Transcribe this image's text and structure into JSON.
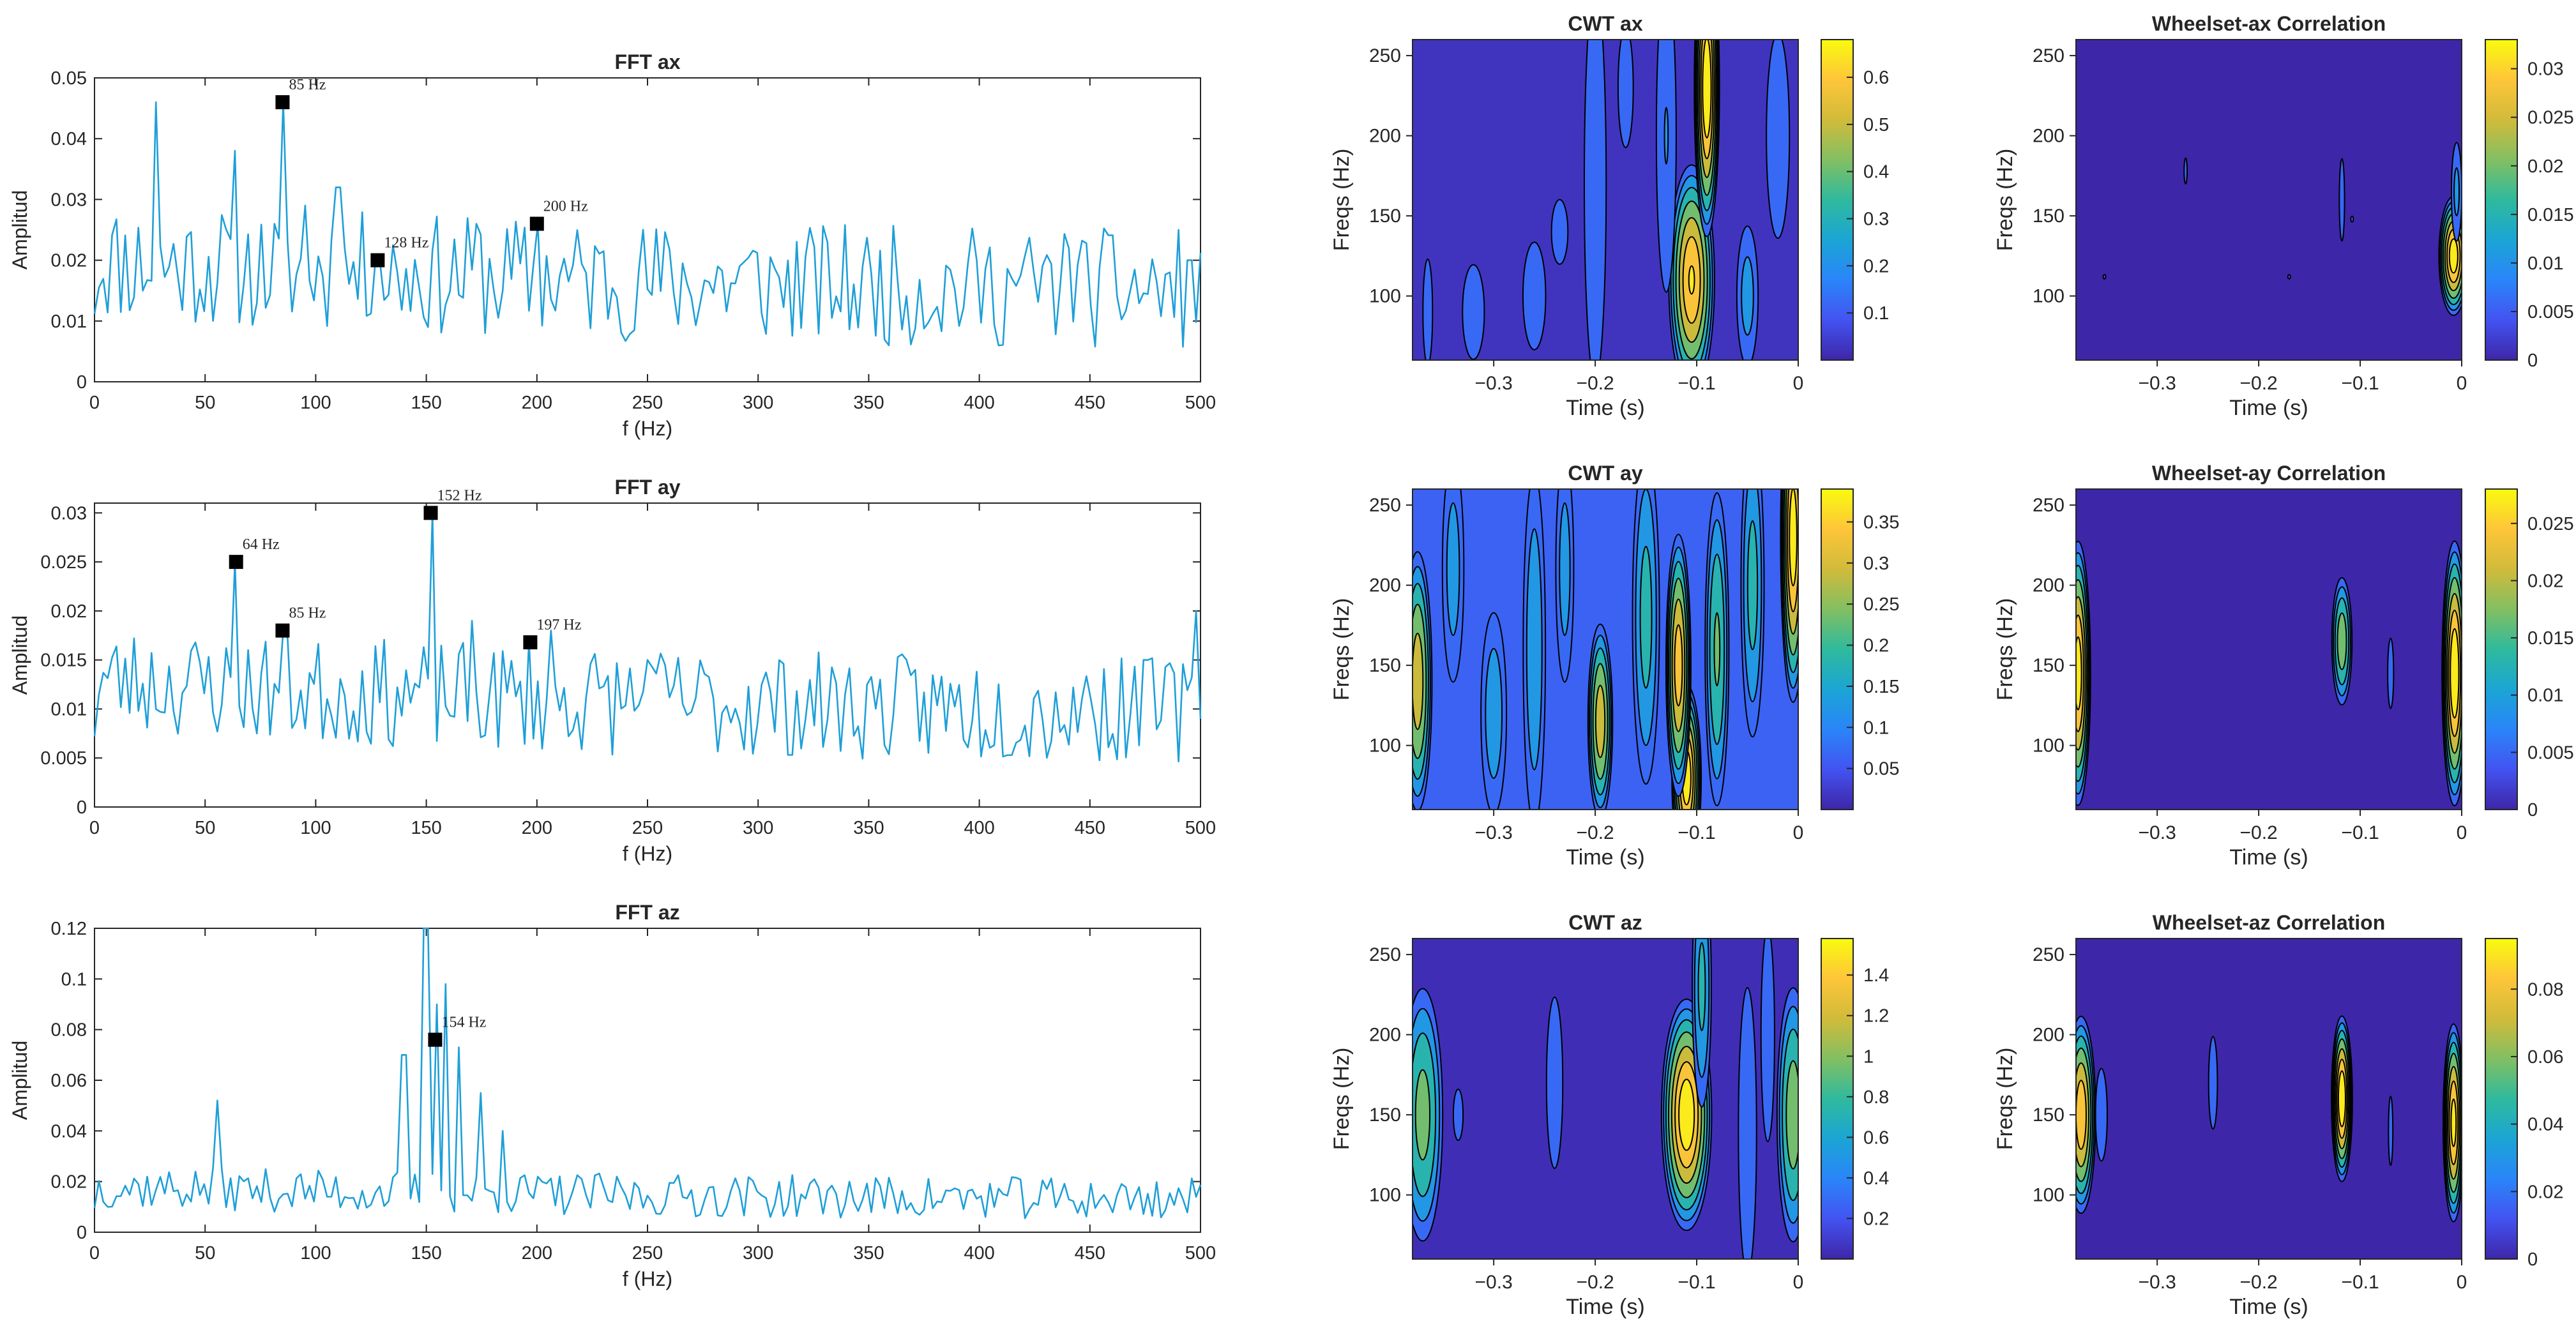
{
  "palette": {
    "line": "#1f9fd8",
    "marker": "#000000",
    "axis": "#262626",
    "background": "#ffffff",
    "parula": [
      "#3e26a8",
      "#4353f1",
      "#2a85f9",
      "#1ba5d4",
      "#2fba9d",
      "#83bf62",
      "#d1bb3a",
      "#fec539",
      "#f9fb0e"
    ]
  },
  "chart_data": [
    {
      "id": "fft-ax",
      "type": "line",
      "title": "FFT ax",
      "xlabel": "f (Hz)",
      "ylabel": "Amplitud",
      "xlim": [
        0,
        500
      ],
      "ylim": [
        0,
        0.05
      ],
      "xticks": [
        0,
        50,
        100,
        150,
        200,
        250,
        300,
        350,
        400,
        450,
        500
      ],
      "yticks": [
        0,
        0.01,
        0.02,
        0.03,
        0.04,
        0.05
      ],
      "yticklabels": [
        "0",
        "0.01",
        "0.02",
        "0.03",
        "0.04",
        "0.05"
      ],
      "seed": 11,
      "base": 0.014,
      "decay": 0.006,
      "noise": 0.02,
      "floor": 0.0,
      "bumps": [
        [
          28,
          0.046
        ],
        [
          63,
          0.038
        ],
        [
          85,
          0.046
        ],
        [
          95,
          0.029
        ],
        [
          110,
          0.032
        ],
        [
          128,
          0.02
        ],
        [
          200,
          0.026
        ],
        [
          172,
          0.026
        ],
        [
          440,
          0.022
        ],
        [
          495,
          0.02
        ]
      ],
      "peaks": [
        {
          "f": 85,
          "a": 0.046,
          "label": "85 Hz"
        },
        {
          "f": 128,
          "a": 0.02,
          "label": "128 Hz"
        },
        {
          "f": 200,
          "a": 0.026,
          "label": "200 Hz"
        }
      ]
    },
    {
      "id": "fft-ay",
      "type": "line",
      "title": "FFT ay",
      "xlabel": "f (Hz)",
      "ylabel": "Amplitud",
      "xlim": [
        0,
        500
      ],
      "ylim": [
        0,
        0.031
      ],
      "xticks": [
        0,
        50,
        100,
        150,
        200,
        250,
        300,
        350,
        400,
        450,
        500
      ],
      "yticks": [
        0,
        0.005,
        0.01,
        0.015,
        0.02,
        0.025,
        0.03
      ],
      "yticklabels": [
        "0",
        "0.005",
        "0.01",
        "0.015",
        "0.02",
        "0.025",
        "0.03"
      ],
      "seed": 23,
      "base": 0.009,
      "decay": 0.004,
      "noise": 0.011,
      "floor": 0.0,
      "bumps": [
        [
          64,
          0.025
        ],
        [
          86,
          0.018
        ],
        [
          152,
          0.03
        ],
        [
          170,
          0.019
        ],
        [
          197,
          0.017
        ],
        [
          207,
          0.018
        ],
        [
          250,
          0.015
        ],
        [
          355,
          0.013
        ],
        [
          450,
          0.011
        ],
        [
          475,
          0.015
        ],
        [
          498,
          0.02
        ]
      ],
      "peaks": [
        {
          "f": 64,
          "a": 0.025,
          "label": "64 Hz"
        },
        {
          "f": 85,
          "a": 0.018,
          "label": "85 Hz"
        },
        {
          "f": 152,
          "a": 0.03,
          "label": "152 Hz"
        },
        {
          "f": 197,
          "a": 0.0168,
          "label": "197 Hz"
        }
      ]
    },
    {
      "id": "fft-az",
      "type": "line",
      "title": "FFT az",
      "xlabel": "f (Hz)",
      "ylabel": "Amplitud",
      "xlim": [
        0,
        500
      ],
      "ylim": [
        0,
        0.12
      ],
      "xticks": [
        0,
        50,
        100,
        150,
        200,
        250,
        300,
        350,
        400,
        450,
        500
      ],
      "yticks": [
        0,
        0.02,
        0.04,
        0.06,
        0.08,
        0.1,
        0.12
      ],
      "yticklabels": [
        "0",
        "0.02",
        "0.04",
        "0.06",
        "0.08",
        "0.1",
        "0.12"
      ],
      "seed": 37,
      "base": 0.012,
      "decay": 0.006,
      "noise": 0.017,
      "floor": 0.0,
      "bumps": [
        [
          55,
          0.052
        ],
        [
          140,
          0.07
        ],
        [
          150,
          0.12
        ],
        [
          154,
          0.09
        ],
        [
          158,
          0.098
        ],
        [
          165,
          0.073
        ],
        [
          175,
          0.055
        ],
        [
          185,
          0.04
        ]
      ],
      "peaks": [
        {
          "f": 154,
          "a": 0.076,
          "label": "154 Hz"
        }
      ]
    },
    {
      "id": "cwt-ax",
      "type": "heatmap",
      "title": "CWT ax",
      "xlabel": "Time (s)",
      "ylabel": "Freqs (Hz)",
      "xlim": [
        -0.38,
        0
      ],
      "ylim": [
        60,
        260
      ],
      "xticks": [
        -0.3,
        -0.2,
        -0.1,
        0
      ],
      "xticklabels": [
        "−0.3",
        "−0.2",
        "−0.1",
        "0"
      ],
      "yticks": [
        100,
        150,
        200,
        250
      ],
      "clim": [
        0,
        0.68
      ],
      "cbticks": [
        0.1,
        0.2,
        0.3,
        0.4,
        0.5,
        0.6
      ],
      "cbticklabels": [
        "0.1",
        "0.2",
        "0.3",
        "0.4",
        "0.5",
        "0.6"
      ],
      "bg": 0.03,
      "blobs": [
        [
          -0.105,
          110,
          0.011,
          35,
          0.62
        ],
        [
          -0.09,
          230,
          0.006,
          45,
          0.68
        ],
        [
          -0.13,
          200,
          0.006,
          60,
          0.18
        ],
        [
          -0.2,
          170,
          0.007,
          80,
          0.16
        ],
        [
          -0.32,
          90,
          0.008,
          22,
          0.13
        ],
        [
          -0.26,
          100,
          0.01,
          30,
          0.11
        ],
        [
          -0.05,
          100,
          0.006,
          25,
          0.22
        ],
        [
          -0.02,
          200,
          0.008,
          45,
          0.14
        ],
        [
          -0.365,
          90,
          0.005,
          35,
          0.1
        ],
        [
          -0.17,
          230,
          0.006,
          30,
          0.12
        ],
        [
          -0.235,
          140,
          0.012,
          30,
          0.09
        ]
      ]
    },
    {
      "id": "corr-ax",
      "type": "heatmap",
      "title": "Wheelset-ax Correlation",
      "xlabel": "Time (s)",
      "ylabel": "Freqs (Hz)",
      "xlim": [
        -0.38,
        0
      ],
      "ylim": [
        60,
        260
      ],
      "xticks": [
        -0.3,
        -0.2,
        -0.1,
        0
      ],
      "xticklabels": [
        "−0.3",
        "−0.2",
        "−0.1",
        "0"
      ],
      "yticks": [
        100,
        150,
        200,
        250
      ],
      "clim": [
        0,
        0.033
      ],
      "cbticks": [
        0,
        0.005,
        0.01,
        0.015,
        0.02,
        0.025,
        0.03
      ],
      "cbticklabels": [
        "0",
        "0.005",
        "0.01",
        "0.015",
        "0.02",
        "0.025",
        "0.03"
      ],
      "bg": 0.0,
      "blobs": [
        [
          -0.008,
          125,
          0.007,
          18,
          0.032
        ],
        [
          -0.005,
          165,
          0.003,
          18,
          0.01
        ],
        [
          -0.118,
          160,
          0.002,
          20,
          0.006
        ],
        [
          -0.272,
          178,
          0.0015,
          8,
          0.005
        ],
        [
          -0.352,
          112,
          0.0015,
          6,
          0.004
        ],
        [
          -0.17,
          112,
          0.0015,
          6,
          0.004
        ],
        [
          -0.108,
          148,
          0.0015,
          8,
          0.004
        ]
      ]
    },
    {
      "id": "cwt-ay",
      "type": "heatmap",
      "title": "CWT ay",
      "xlabel": "Time (s)",
      "ylabel": "Freqs (Hz)",
      "xlim": [
        -0.38,
        0
      ],
      "ylim": [
        60,
        260
      ],
      "xticks": [
        -0.3,
        -0.2,
        -0.1,
        0
      ],
      "xticklabels": [
        "−0.3",
        "−0.2",
        "−0.1",
        "0"
      ],
      "yticks": [
        100,
        150,
        200,
        250
      ],
      "clim": [
        0,
        0.39
      ],
      "cbticks": [
        0.05,
        0.1,
        0.15,
        0.2,
        0.25,
        0.3,
        0.35
      ],
      "cbticklabels": [
        "0.05",
        "0.1",
        "0.15",
        "0.2",
        "0.25",
        "0.3",
        "0.35"
      ],
      "bg": 0.07,
      "blobs": [
        [
          -0.11,
          80,
          0.007,
          28,
          0.38
        ],
        [
          -0.118,
          150,
          0.006,
          40,
          0.34
        ],
        [
          -0.195,
          115,
          0.006,
          30,
          0.3
        ],
        [
          -0.005,
          230,
          0.006,
          50,
          0.38
        ],
        [
          -0.375,
          140,
          0.007,
          40,
          0.3
        ],
        [
          -0.08,
          160,
          0.006,
          50,
          0.22
        ],
        [
          -0.15,
          180,
          0.007,
          55,
          0.18
        ],
        [
          -0.26,
          160,
          0.006,
          60,
          0.15
        ],
        [
          -0.3,
          120,
          0.007,
          35,
          0.14
        ],
        [
          -0.045,
          200,
          0.006,
          50,
          0.18
        ],
        [
          -0.34,
          210,
          0.006,
          40,
          0.13
        ],
        [
          -0.23,
          210,
          0.005,
          40,
          0.13
        ]
      ]
    },
    {
      "id": "corr-ay",
      "type": "heatmap",
      "title": "Wheelset-ay Correlation",
      "xlabel": "Time (s)",
      "ylabel": "Freqs (Hz)",
      "xlim": [
        -0.38,
        0
      ],
      "ylim": [
        60,
        260
      ],
      "xticks": [
        -0.3,
        -0.2,
        -0.1,
        0
      ],
      "xticklabels": [
        "−0.3",
        "−0.2",
        "−0.1",
        "0"
      ],
      "yticks": [
        100,
        150,
        200,
        250
      ],
      "clim": [
        0,
        0.028
      ],
      "cbticks": [
        0,
        0.005,
        0.01,
        0.015,
        0.02,
        0.025
      ],
      "cbticklabels": [
        "0",
        "0.005",
        "0.01",
        "0.015",
        "0.02",
        "0.025"
      ],
      "bg": 0.0,
      "blobs": [
        [
          -0.378,
          145,
          0.006,
          40,
          0.027
        ],
        [
          -0.007,
          145,
          0.006,
          40,
          0.028
        ],
        [
          -0.118,
          165,
          0.005,
          20,
          0.018
        ],
        [
          -0.07,
          145,
          0.002,
          15,
          0.006
        ]
      ]
    },
    {
      "id": "cwt-az",
      "type": "heatmap",
      "title": "CWT az",
      "xlabel": "Time (s)",
      "ylabel": "Freqs (Hz)",
      "xlim": [
        -0.38,
        0
      ],
      "ylim": [
        60,
        260
      ],
      "xticks": [
        -0.3,
        -0.2,
        -0.1,
        0
      ],
      "xticklabels": [
        "−0.3",
        "−0.2",
        "−0.1",
        "0"
      ],
      "yticks": [
        100,
        150,
        200,
        250
      ],
      "clim": [
        0,
        1.58
      ],
      "cbticks": [
        0.2,
        0.4,
        0.6,
        0.8,
        1,
        1.2,
        1.4
      ],
      "cbticklabels": [
        "0.2",
        "0.4",
        "0.6",
        "0.8",
        "1",
        "1.2",
        "1.4"
      ],
      "bg": 0.04,
      "blobs": [
        [
          -0.11,
          150,
          0.012,
          35,
          1.55
        ],
        [
          -0.37,
          150,
          0.01,
          40,
          0.95
        ],
        [
          -0.005,
          150,
          0.008,
          40,
          1.0
        ],
        [
          -0.24,
          170,
          0.006,
          40,
          0.3
        ],
        [
          -0.095,
          230,
          0.005,
          40,
          0.7
        ],
        [
          -0.05,
          140,
          0.006,
          60,
          0.35
        ],
        [
          -0.335,
          150,
          0.003,
          10,
          0.4
        ],
        [
          -0.03,
          200,
          0.005,
          50,
          0.3
        ]
      ]
    },
    {
      "id": "corr-az",
      "type": "heatmap",
      "title": "Wheelset-az Correlation",
      "xlabel": "Time (s)",
      "ylabel": "Freqs (Hz)",
      "xlim": [
        -0.38,
        0
      ],
      "ylim": [
        60,
        260
      ],
      "xticks": [
        -0.3,
        -0.2,
        -0.1,
        0
      ],
      "xticklabels": [
        "−0.3",
        "−0.2",
        "−0.1",
        "0"
      ],
      "yticks": [
        100,
        150,
        200,
        250
      ],
      "clim": [
        0,
        0.095
      ],
      "cbticks": [
        0,
        0.02,
        0.04,
        0.06,
        0.08
      ],
      "cbticklabels": [
        "0",
        "0.02",
        "0.04",
        "0.06",
        "0.08"
      ],
      "bg": 0.0,
      "blobs": [
        [
          -0.118,
          160,
          0.005,
          25,
          0.095
        ],
        [
          -0.008,
          145,
          0.005,
          30,
          0.09
        ],
        [
          -0.375,
          150,
          0.007,
          30,
          0.085
        ],
        [
          -0.355,
          150,
          0.004,
          20,
          0.02
        ],
        [
          -0.245,
          170,
          0.003,
          20,
          0.02
        ],
        [
          -0.07,
          140,
          0.002,
          20,
          0.015
        ],
        [
          -0.17,
          115,
          0.0015,
          8,
          0.01
        ]
      ]
    }
  ]
}
